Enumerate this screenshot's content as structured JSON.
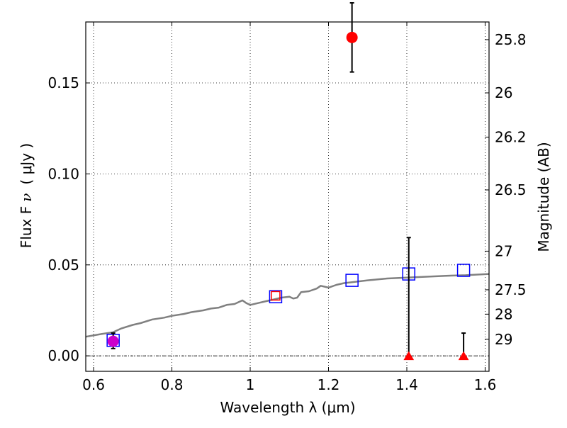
{
  "chart_data": {
    "type": "scatter",
    "xlabel": "Wavelength  λ (μm)",
    "ylabel": "Flux  F",
    "ylabel_sub": "ν",
    "ylabel_unit": "( μJy )",
    "ylabel_right": "Magnitude (AB)",
    "xlim": [
      0.58,
      1.61
    ],
    "ylim": [
      -0.0085,
      0.1835
    ],
    "grid": true,
    "x_ticks": [
      {
        "value": 0.6,
        "label": "0.6"
      },
      {
        "value": 0.8,
        "label": "0.8"
      },
      {
        "value": 1.0,
        "label": "1"
      },
      {
        "value": 1.2,
        "label": "1.2"
      },
      {
        "value": 1.4,
        "label": "1.4"
      },
      {
        "value": 1.6,
        "label": "1.6"
      }
    ],
    "y_ticks": [
      {
        "value": 0.0,
        "label": "0.00"
      },
      {
        "value": 0.05,
        "label": "0.05"
      },
      {
        "value": 0.1,
        "label": "0.10"
      },
      {
        "value": 0.15,
        "label": "0.15"
      }
    ],
    "right_ticks": [
      {
        "value": 25.8,
        "label": "25.8"
      },
      {
        "value": 26.0,
        "label": "26"
      },
      {
        "value": 26.2,
        "label": "26.2"
      },
      {
        "value": 26.5,
        "label": "26.5"
      },
      {
        "value": 27.0,
        "label": "27"
      },
      {
        "value": 27.5,
        "label": "27.5"
      },
      {
        "value": 28.0,
        "label": "28"
      },
      {
        "value": 29.0,
        "label": "29"
      }
    ],
    "model_curve": {
      "color": "#808080",
      "x": [
        0.58,
        0.62,
        0.65,
        0.67,
        0.7,
        0.72,
        0.75,
        0.78,
        0.8,
        0.83,
        0.85,
        0.88,
        0.9,
        0.92,
        0.94,
        0.96,
        0.98,
        0.99,
        1.0,
        1.02,
        1.04,
        1.06,
        1.08,
        1.1,
        1.11,
        1.12,
        1.13,
        1.15,
        1.17,
        1.18,
        1.2,
        1.22,
        1.24,
        1.26,
        1.3,
        1.35,
        1.4,
        1.45,
        1.5,
        1.55,
        1.61
      ],
      "y": [
        0.0105,
        0.012,
        0.013,
        0.015,
        0.017,
        0.018,
        0.02,
        0.021,
        0.022,
        0.023,
        0.024,
        0.025,
        0.026,
        0.0265,
        0.028,
        0.0285,
        0.0305,
        0.029,
        0.028,
        0.029,
        0.03,
        0.031,
        0.032,
        0.0325,
        0.0315,
        0.032,
        0.035,
        0.0355,
        0.037,
        0.0385,
        0.0375,
        0.039,
        0.04,
        0.0405,
        0.0415,
        0.0425,
        0.043,
        0.0435,
        0.044,
        0.0443,
        0.045
      ]
    },
    "model_points": {
      "color": "#0000ff",
      "x": [
        0.65,
        1.065,
        1.26,
        1.405,
        1.545
      ],
      "y": [
        0.0085,
        0.0325,
        0.0415,
        0.045,
        0.047
      ]
    },
    "observed_detections": {
      "color": "#ff0000",
      "points": [
        {
          "x": 0.65,
          "y": 0.008,
          "err_low": 0.004,
          "err_high": 0.0045,
          "marker": "circle",
          "fill": "#cc00cc"
        },
        {
          "x": 1.065,
          "y": 0.033,
          "err_low": 0.0,
          "err_high": 0.0,
          "marker": "square-open",
          "fill": "#ff0000"
        },
        {
          "x": 1.26,
          "y": 0.175,
          "err_low": 0.019,
          "err_high": 0.019,
          "marker": "circle",
          "fill": "#ff0000"
        }
      ]
    },
    "observed_upper_limits": {
      "color": "#ff0000",
      "points": [
        {
          "x": 1.405,
          "y": 0.0,
          "err_high": 0.065
        },
        {
          "x": 1.545,
          "y": 0.0,
          "err_high": 0.0125
        }
      ]
    }
  }
}
